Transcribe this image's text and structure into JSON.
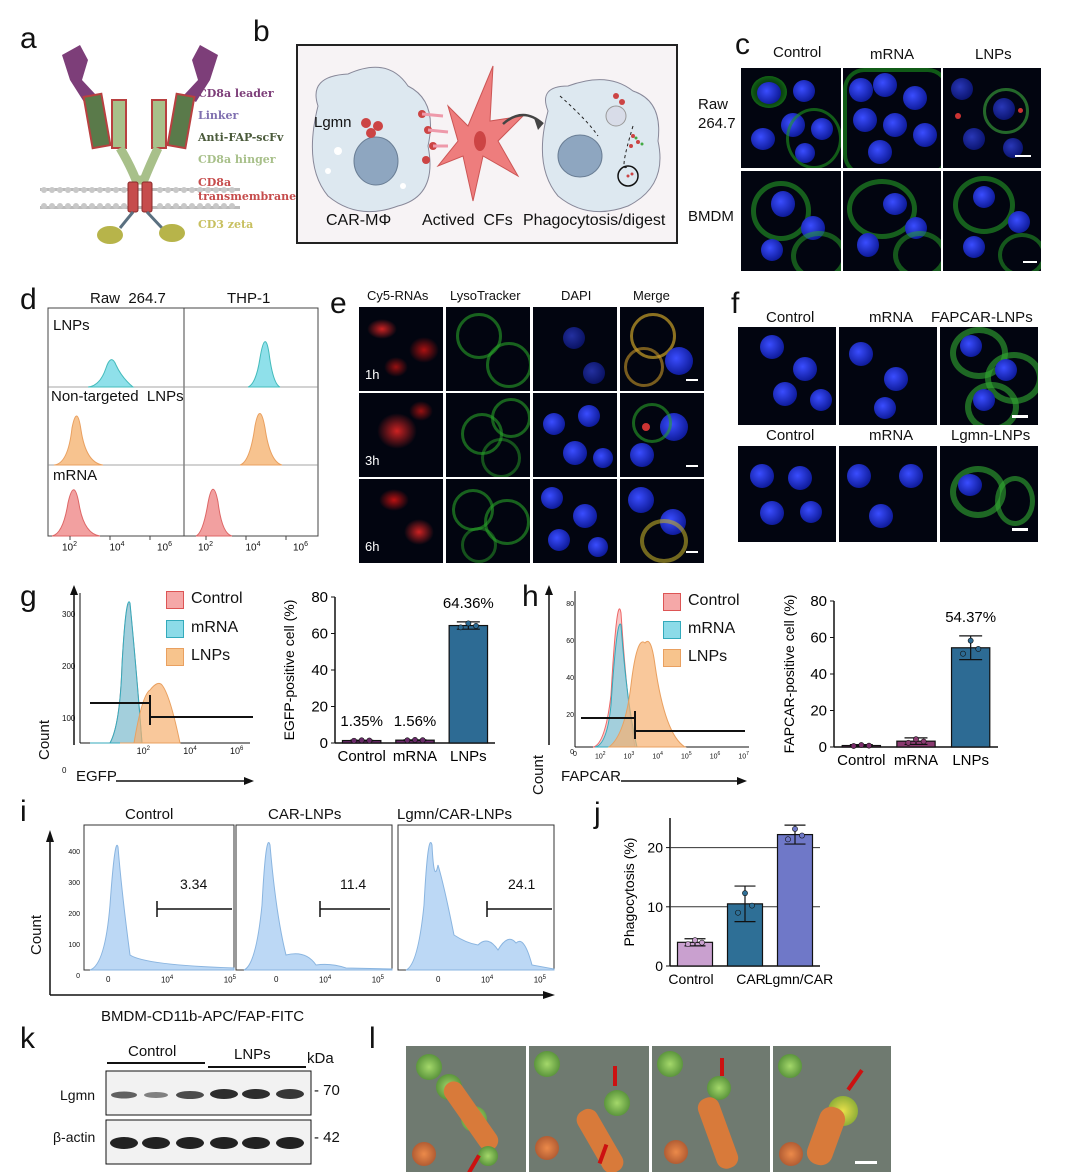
{
  "panels": {
    "a": {
      "letter": "a",
      "labels": [
        "CD8a leader",
        "Linker",
        "Anti-FAP-scFv",
        "CD8a hinger",
        "CD8a transmembrane",
        "CD3 zeta"
      ],
      "colors": [
        "#7d3e79",
        "#8070b0",
        "#4a5a3a",
        "#a8c08a",
        "#c64c4c",
        "#c8c060"
      ]
    },
    "b": {
      "letter": "b",
      "lgmn": "Lgmn",
      "car": "CAR-MΦ",
      "actived": "Actived  CFs",
      "phago": "Phagocytosis/digest"
    },
    "c": {
      "letter": "c",
      "cols": [
        "Control",
        "mRNA",
        "LNPs"
      ],
      "rows": [
        "Raw\n264.7",
        "BMDM"
      ],
      "row1a": "Raw",
      "row1b": "264.7",
      "row2": "BMDM"
    },
    "d": {
      "letter": "d",
      "cols": [
        "Raw  264.7",
        "THP-1"
      ],
      "rows": [
        "LNPs",
        "Non-targeted  LNPs",
        "mRNA"
      ],
      "ticks": [
        "10",
        "2",
        "10",
        "4",
        "10",
        "6"
      ]
    },
    "e": {
      "letter": "e",
      "cols": [
        "Cy5-RNAs",
        "LysoTracker",
        "DAPI",
        "Merge"
      ],
      "times": [
        "1h",
        "3h",
        "6h"
      ]
    },
    "f": {
      "letter": "f",
      "row1": [
        "Control",
        "mRNA",
        "FAPCAR-LNPs"
      ],
      "row2": [
        "Control",
        "mRNA",
        "Lgmn-LNPs"
      ]
    },
    "g": {
      "letter": "g",
      "legend": [
        "Control",
        "mRNA",
        "LNPs"
      ],
      "xlabel": "EGFP",
      "ylabel": "Count",
      "yticks": [
        "300",
        "200",
        "100",
        "0"
      ],
      "xticks": [
        "10",
        "2",
        "10",
        "4",
        "10",
        "6"
      ]
    },
    "h": {
      "letter": "h",
      "legend": [
        "Control",
        "mRNA",
        "LNPs"
      ],
      "xlabel": "FAPCAR",
      "ylabel": "Count",
      "yticks": [
        "80",
        "60",
        "40",
        "20",
        "0"
      ],
      "xticks": [
        "0",
        "10",
        "2",
        "10",
        "3",
        "10",
        "4",
        "10",
        "5",
        "10",
        "6",
        "10",
        "7"
      ]
    },
    "i": {
      "letter": "i",
      "titles": [
        "Control",
        "CAR-LNPs",
        "Lgmn/CAR-LNPs"
      ],
      "gates": [
        "3.34",
        "11.4",
        "24.1"
      ],
      "xlabel": "BMDM-CD11b-APC/FAP-FITC",
      "ylabel": "Count",
      "yticks": [
        "400",
        "300",
        "200",
        "100",
        "0"
      ],
      "xticks": [
        "0",
        "10",
        "4",
        "10",
        "5"
      ]
    },
    "j": {
      "letter": "j"
    },
    "k": {
      "letter": "k",
      "groups": [
        "Control",
        "LNPs"
      ],
      "kda": "kDa",
      "bands": [
        "Lgmn",
        "β-actin"
      ],
      "sizes": [
        "- 70",
        "- 42"
      ]
    },
    "l": {
      "letter": "l"
    }
  },
  "chart_data": [
    {
      "type": "bar",
      "panel": "g",
      "categories": [
        "Control",
        "mRNA",
        "LNPs"
      ],
      "values": [
        1.35,
        1.56,
        64.36
      ],
      "value_labels": [
        "1.35%",
        "1.56%",
        "64.36%"
      ],
      "errors": [
        0.2,
        0.2,
        2.0
      ],
      "ylabel": "EGFP-positive cell (%)",
      "ylim": [
        0,
        80
      ],
      "yticks": [
        0,
        20,
        40,
        60,
        80
      ],
      "colors": [
        "#6a2a6a",
        "#6a2a6a",
        "#2d6b94"
      ]
    },
    {
      "type": "bar",
      "panel": "h",
      "categories": [
        "Control",
        "mRNA",
        "LNPs"
      ],
      "values": [
        0.8,
        3.2,
        54.37
      ],
      "value_labels": [
        "",
        "",
        "54.37%"
      ],
      "errors": [
        0.5,
        1.8,
        6.5
      ],
      "ylabel": "FAPCAR-positive cell (%)",
      "ylim": [
        0,
        80
      ],
      "yticks": [
        0,
        20,
        40,
        60,
        80
      ],
      "colors": [
        "#7a2c6a",
        "#8a3a70",
        "#2d6b94"
      ]
    },
    {
      "type": "bar",
      "panel": "j",
      "categories": [
        "Control",
        "CAR",
        "Lgmn/CAR"
      ],
      "values": [
        4.0,
        10.5,
        22.2
      ],
      "errors": [
        0.6,
        3.0,
        1.6
      ],
      "ylabel": "Phagocytosis (%)",
      "ylim": [
        0,
        25
      ],
      "yticks": [
        0,
        10,
        20
      ],
      "grid": true,
      "colors": [
        "#c9a0cf",
        "#2e6f96",
        "#6f78c8"
      ]
    }
  ]
}
